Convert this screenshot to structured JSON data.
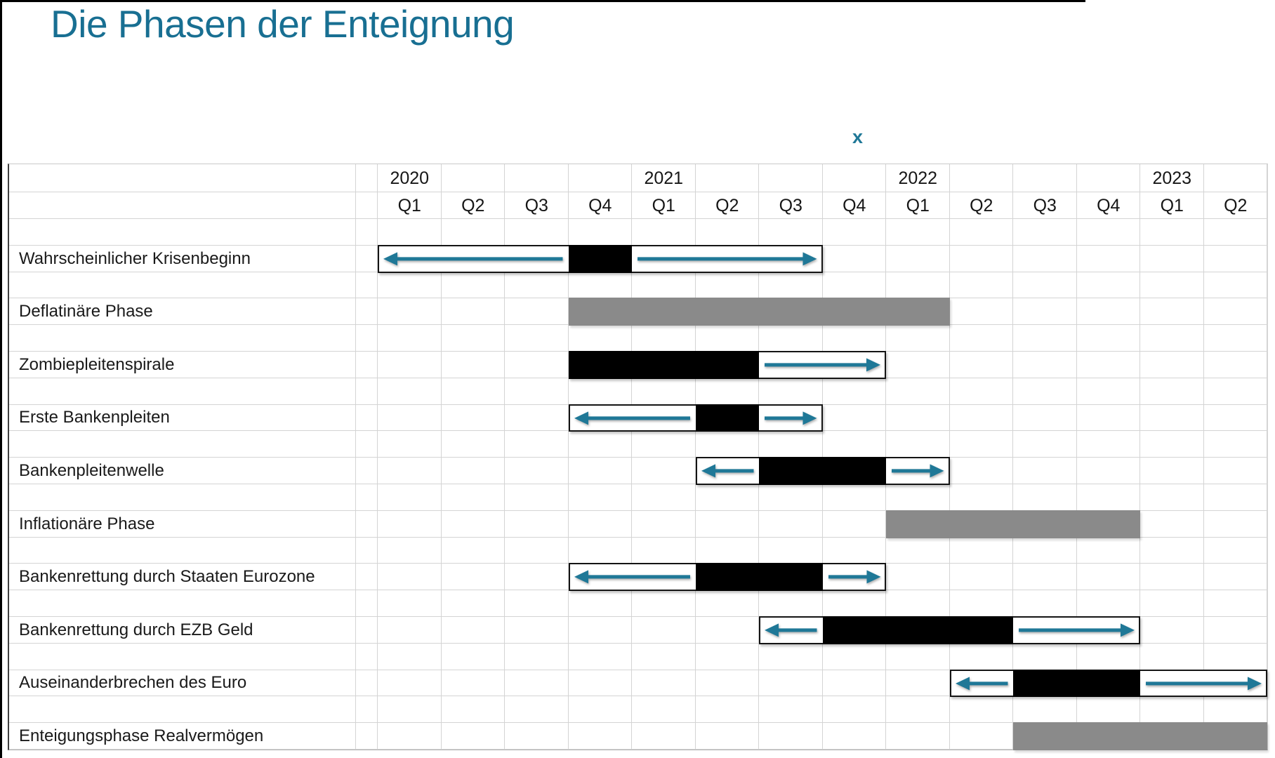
{
  "title": "Die Phasen der Enteignung",
  "stray_mark": "x",
  "chart_data": {
    "type": "gantt",
    "title": "Die Phasen der Enteignung",
    "time_axis": {
      "unit": "quarter",
      "range": "2020-Q1 to 2023-Q2",
      "grid": true
    },
    "years": [
      {
        "label": "2020",
        "quarters": [
          "Q1",
          "Q2",
          "Q3",
          "Q4"
        ]
      },
      {
        "label": "2021",
        "quarters": [
          "Q1",
          "Q2",
          "Q3",
          "Q4"
        ]
      },
      {
        "label": "2022",
        "quarters": [
          "Q1",
          "Q2",
          "Q3",
          "Q4"
        ]
      },
      {
        "label": "2023",
        "quarters": [
          "Q1",
          "Q2"
        ]
      }
    ],
    "rows": [
      {
        "label": "Wahrscheinlicher Krisenbeginn",
        "bar": {
          "type": "outlined",
          "from": 0,
          "to": 7,
          "segments": [
            {
              "kind": "arrow-left",
              "from": 0,
              "to": 3
            },
            {
              "kind": "black",
              "from": 3,
              "to": 4
            },
            {
              "kind": "arrow-right",
              "from": 4,
              "to": 7
            }
          ]
        }
      },
      {
        "label": "Deflatinäre Phase",
        "bar": {
          "type": "gray",
          "from": 3,
          "to": 9
        }
      },
      {
        "label": "Zombiepleitenspirale",
        "bar": {
          "type": "outlined",
          "from": 3,
          "to": 8,
          "segments": [
            {
              "kind": "black",
              "from": 3,
              "to": 6
            },
            {
              "kind": "arrow-right",
              "from": 6,
              "to": 8
            }
          ]
        }
      },
      {
        "label": "Erste Bankenpleiten",
        "bar": {
          "type": "outlined",
          "from": 3,
          "to": 7,
          "segments": [
            {
              "kind": "arrow-left",
              "from": 3,
              "to": 5
            },
            {
              "kind": "black",
              "from": 5,
              "to": 6
            },
            {
              "kind": "arrow-right",
              "from": 6,
              "to": 7
            }
          ]
        }
      },
      {
        "label": "Bankenpleitenwelle",
        "bar": {
          "type": "outlined",
          "from": 5,
          "to": 9,
          "segments": [
            {
              "kind": "arrow-left",
              "from": 5,
              "to": 6
            },
            {
              "kind": "black",
              "from": 6,
              "to": 8
            },
            {
              "kind": "arrow-right",
              "from": 8,
              "to": 9
            }
          ]
        }
      },
      {
        "label": "Inflationäre Phase",
        "bar": {
          "type": "gray",
          "from": 8,
          "to": 12
        }
      },
      {
        "label": "Bankenrettung durch Staaten Eurozone",
        "bar": {
          "type": "outlined",
          "from": 3,
          "to": 8,
          "segments": [
            {
              "kind": "arrow-left",
              "from": 3,
              "to": 5
            },
            {
              "kind": "black",
              "from": 5,
              "to": 7
            },
            {
              "kind": "arrow-right",
              "from": 7,
              "to": 8
            }
          ]
        }
      },
      {
        "label": "Bankenrettung durch EZB Geld",
        "bar": {
          "type": "outlined",
          "from": 6,
          "to": 12,
          "segments": [
            {
              "kind": "arrow-left",
              "from": 6,
              "to": 7
            },
            {
              "kind": "black",
              "from": 7,
              "to": 10
            },
            {
              "kind": "arrow-right",
              "from": 10,
              "to": 12
            }
          ]
        }
      },
      {
        "label": "Auseinanderbrechen des Euro",
        "bar": {
          "type": "outlined",
          "from": 9,
          "to": 14,
          "segments": [
            {
              "kind": "arrow-left",
              "from": 9,
              "to": 10
            },
            {
              "kind": "black",
              "from": 10,
              "to": 12
            },
            {
              "kind": "arrow-right",
              "from": 12,
              "to": 14
            }
          ]
        }
      },
      {
        "label": "Enteigungsphase Realvermögen",
        "bar": {
          "type": "gray",
          "from": 10,
          "to": 14
        }
      }
    ],
    "colors": {
      "title_teal": "#186F92",
      "accent_teal": "#1F7897",
      "bar_black": "#000000",
      "bar_gray": "#8A8A8A"
    }
  }
}
